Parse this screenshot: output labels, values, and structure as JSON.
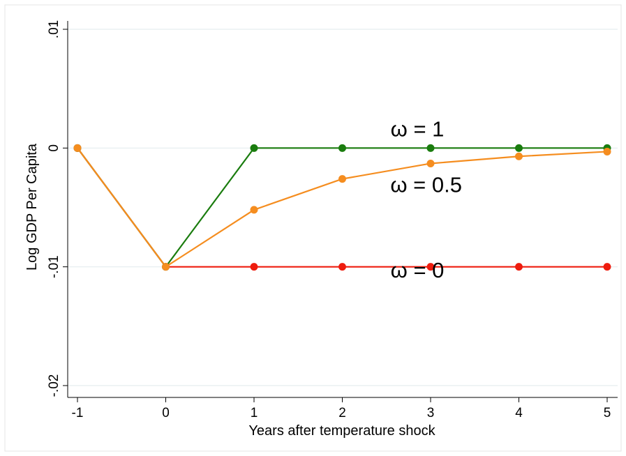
{
  "chart_data": {
    "type": "line",
    "xlabel": "Years after temperature shock",
    "ylabel": "Log GDP Per Capita",
    "xlim": [
      -1,
      5
    ],
    "ylim": [
      -0.02,
      0.01
    ],
    "x_ticks": [
      -1,
      0,
      1,
      2,
      3,
      4,
      5
    ],
    "x_tick_labels": [
      "-1",
      "0",
      "1",
      "2",
      "3",
      "4",
      "5"
    ],
    "y_ticks": [
      0.01,
      0,
      -0.01,
      -0.02
    ],
    "y_tick_labels": [
      ".01",
      "0",
      "-.01",
      "-.02"
    ],
    "grid": true,
    "legend": "none",
    "x": [
      -1,
      0,
      1,
      2,
      3,
      4,
      5
    ],
    "series": [
      {
        "color": "#ee1c0e",
        "values": [
          0,
          -0.01,
          -0.01,
          -0.01,
          -0.01,
          -0.01,
          -0.01
        ]
      },
      {
        "color": "#1a7c0e",
        "values": [
          0,
          -0.01,
          0,
          0,
          0,
          0,
          0
        ]
      },
      {
        "color": "#f58d1f",
        "values": [
          0,
          -0.01,
          -0.0052,
          -0.0026,
          -0.0013,
          -0.0007,
          -0.0003
        ]
      }
    ],
    "annotations": [
      {
        "text": "ω = 1",
        "x": 2.85,
        "y": 0.001
      },
      {
        "text": "ω = 0.5",
        "x": 2.95,
        "y": -0.0037
      },
      {
        "text": "ω = 0",
        "x": 2.85,
        "y": -0.0109
      }
    ]
  }
}
